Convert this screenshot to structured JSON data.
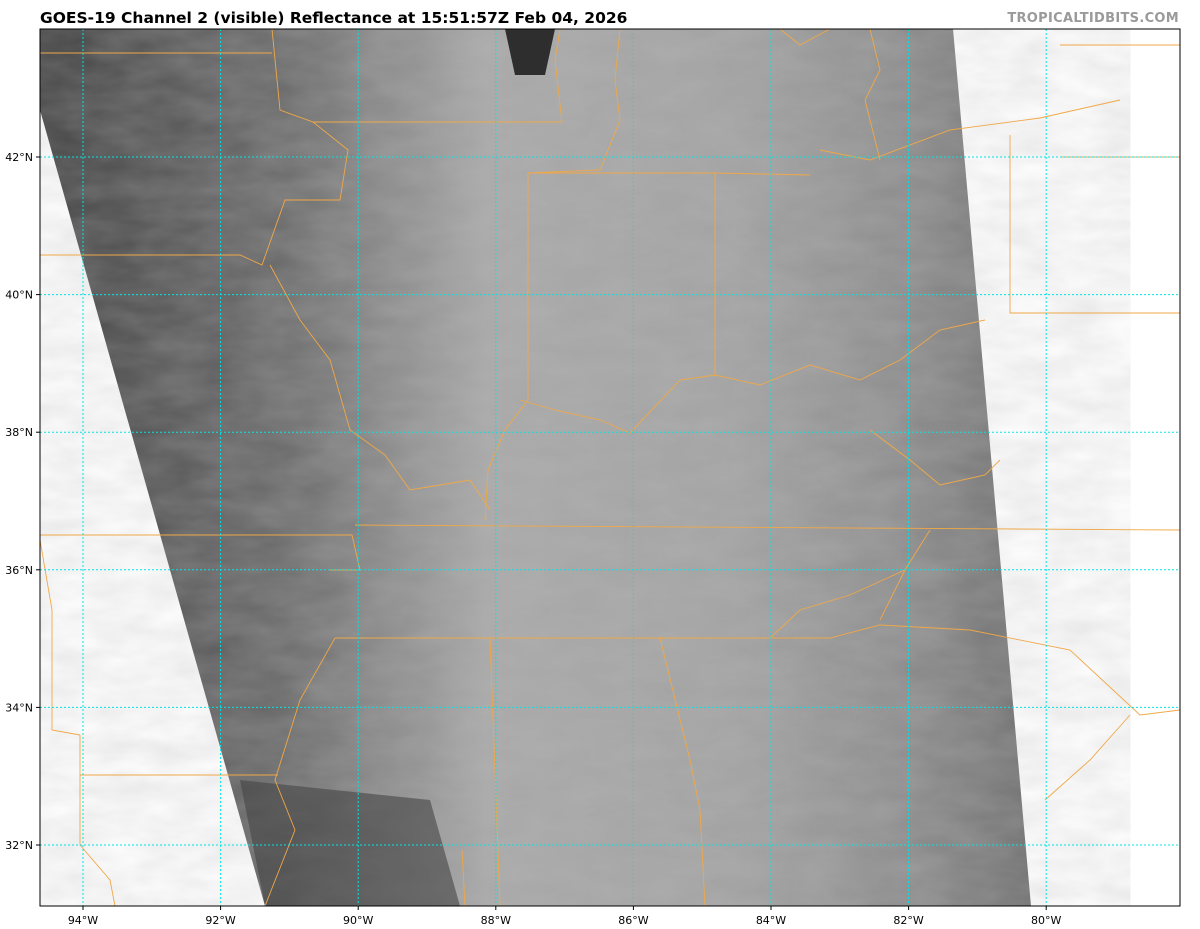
{
  "title": "GOES-19 Channel 2 (visible) Reflectance at 15:51:57Z Feb 04, 2026",
  "watermark": "TROPICALTIDBITS.COM",
  "map": {
    "product": "visible reflectance satellite imagery",
    "lat_labels": [
      "42°N",
      "40°N",
      "38°N",
      "36°N",
      "34°N",
      "32°N"
    ],
    "lat_values": [
      42,
      40,
      38,
      36,
      34,
      32
    ],
    "lon_labels": [
      "94°W",
      "92°W",
      "90°W",
      "88°W",
      "86°W",
      "84°W",
      "82°W",
      "80°W"
    ],
    "lon_values": [
      -94,
      -92,
      -90,
      -88,
      -86,
      -84,
      -82,
      -80
    ],
    "extent": {
      "lon": [
        -94.6,
        -78.0
      ],
      "lat": [
        31.1,
        43.9
      ]
    },
    "colors": {
      "gridlines": "#00e5e5",
      "borders": "#f0a848",
      "imagery_dark": "#3c3c3c",
      "imagery_light": "#b4b4b4"
    }
  }
}
